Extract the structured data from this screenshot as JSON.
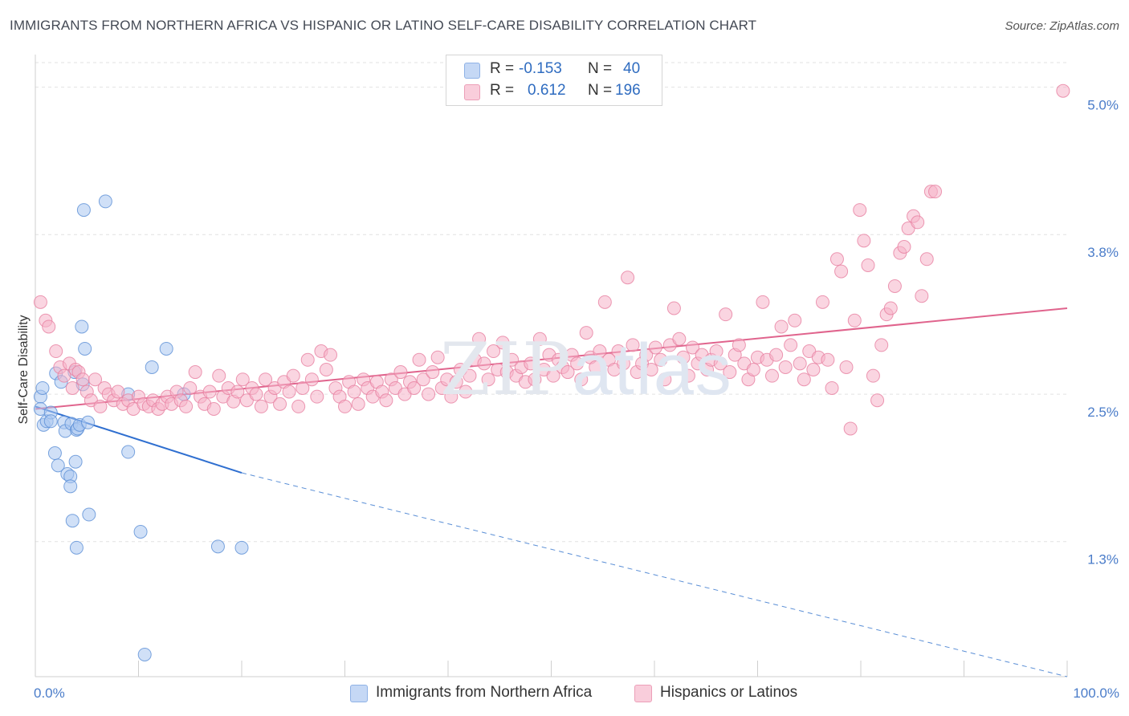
{
  "header": {
    "title": "IMMIGRANTS FROM NORTHERN AFRICA VS HISPANIC OR LATINO SELF-CARE DISABILITY CORRELATION CHART",
    "source": "Source: ZipAtlas.com"
  },
  "watermark": {
    "zip": "ZIP",
    "atlas": "atlas"
  },
  "legend": {
    "rows": [
      {
        "r_label": "R =",
        "r_value": "-0.153",
        "n_label": "N =",
        "n_value": "40",
        "color": "#a9c6f0"
      },
      {
        "r_label": "R =",
        "r_value": "0.612",
        "n_label": "N =",
        "n_value": "196",
        "color": "#f5b3c8"
      }
    ]
  },
  "bottom_legend": [
    {
      "label": "Immigrants from Northern Africa",
      "color": "#a9c6f0"
    },
    {
      "label": "Hispanics or Latinos",
      "color": "#f5b3c8"
    }
  ],
  "chart_data": {
    "type": "scatter",
    "title": "IMMIGRANTS FROM NORTHERN AFRICA VS HISPANIC OR LATINO SELF-CARE DISABILITY CORRELATION CHART",
    "ylabel": "Self-Care Disability",
    "xlabel": "",
    "xlim": [
      0,
      100
    ],
    "ylim": [
      0.2,
      5.2
    ],
    "x_ticks": [
      "0.0%",
      "100.0%"
    ],
    "y_ticks": [
      {
        "value": 1.3,
        "label": "1.3%"
      },
      {
        "value": 2.5,
        "label": "2.5%"
      },
      {
        "value": 3.8,
        "label": "3.8%"
      },
      {
        "value": 5.0,
        "label": "5.0%"
      }
    ],
    "grid": true,
    "legend_position": "top-center",
    "series": [
      {
        "name": "Immigrants from Northern Africa",
        "color": "#a9c6f0",
        "stroke": "#5b8fd6",
        "points": [
          [
            0.5,
            2.48
          ],
          [
            0.5,
            2.38
          ],
          [
            0.7,
            2.55
          ],
          [
            0.8,
            2.25
          ],
          [
            1.1,
            2.28
          ],
          [
            1.5,
            2.35
          ],
          [
            1.5,
            2.28
          ],
          [
            1.9,
            2.02
          ],
          [
            2.0,
            2.67
          ],
          [
            2.2,
            1.92
          ],
          [
            2.5,
            2.6
          ],
          [
            2.8,
            2.27
          ],
          [
            2.9,
            2.2
          ],
          [
            3.1,
            1.85
          ],
          [
            3.4,
            1.83
          ],
          [
            3.4,
            1.75
          ],
          [
            3.5,
            2.26
          ],
          [
            3.6,
            1.47
          ],
          [
            3.8,
            2.68
          ],
          [
            3.9,
            1.95
          ],
          [
            4.0,
            2.21
          ],
          [
            4.0,
            1.25
          ],
          [
            4.1,
            2.22
          ],
          [
            4.3,
            2.25
          ],
          [
            4.5,
            3.05
          ],
          [
            4.6,
            2.58
          ],
          [
            4.7,
            4.0
          ],
          [
            4.8,
            2.87
          ],
          [
            5.1,
            2.27
          ],
          [
            6.8,
            4.07
          ],
          [
            5.2,
            1.52
          ],
          [
            9.0,
            2.5
          ],
          [
            9.0,
            2.03
          ],
          [
            10.2,
            1.38
          ],
          [
            10.6,
            0.38
          ],
          [
            11.3,
            2.72
          ],
          [
            12.7,
            2.87
          ],
          [
            14.4,
            2.5
          ],
          [
            17.7,
            1.26
          ],
          [
            20.0,
            1.25
          ]
        ],
        "trend": {
          "x0": 0,
          "y0": 2.4,
          "x1": 20,
          "y1": 1.86,
          "dashed_to": 100,
          "dashed_y": 0.2
        }
      },
      {
        "name": "Hispanics or Latinos",
        "color": "#f5b3c8",
        "stroke": "#e77fa0",
        "points": [
          [
            0.5,
            3.25
          ],
          [
            1.0,
            3.1
          ],
          [
            1.3,
            3.05
          ],
          [
            2.0,
            2.85
          ],
          [
            2.4,
            2.72
          ],
          [
            2.8,
            2.65
          ],
          [
            3.3,
            2.75
          ],
          [
            3.6,
            2.55
          ],
          [
            3.9,
            2.7
          ],
          [
            4.2,
            2.68
          ],
          [
            4.6,
            2.62
          ],
          [
            5.0,
            2.52
          ],
          [
            5.4,
            2.45
          ],
          [
            5.8,
            2.62
          ],
          [
            6.3,
            2.4
          ],
          [
            6.7,
            2.55
          ],
          [
            7.1,
            2.5
          ],
          [
            7.6,
            2.45
          ],
          [
            8.0,
            2.52
          ],
          [
            8.5,
            2.42
          ],
          [
            9.0,
            2.45
          ],
          [
            9.5,
            2.38
          ],
          [
            10.0,
            2.48
          ],
          [
            10.5,
            2.42
          ],
          [
            11.0,
            2.4
          ],
          [
            11.4,
            2.45
          ],
          [
            11.9,
            2.38
          ],
          [
            12.3,
            2.42
          ],
          [
            12.8,
            2.48
          ],
          [
            13.2,
            2.42
          ],
          [
            13.7,
            2.52
          ],
          [
            14.1,
            2.45
          ],
          [
            14.6,
            2.4
          ],
          [
            15.0,
            2.55
          ],
          [
            15.5,
            2.68
          ],
          [
            16.0,
            2.48
          ],
          [
            16.4,
            2.42
          ],
          [
            16.9,
            2.52
          ],
          [
            17.3,
            2.38
          ],
          [
            17.8,
            2.65
          ],
          [
            18.2,
            2.48
          ],
          [
            18.7,
            2.55
          ],
          [
            19.2,
            2.44
          ],
          [
            19.6,
            2.52
          ],
          [
            20.1,
            2.62
          ],
          [
            20.5,
            2.45
          ],
          [
            21.0,
            2.55
          ],
          [
            21.4,
            2.5
          ],
          [
            21.9,
            2.4
          ],
          [
            22.3,
            2.62
          ],
          [
            22.8,
            2.48
          ],
          [
            23.2,
            2.55
          ],
          [
            23.7,
            2.42
          ],
          [
            24.1,
            2.6
          ],
          [
            24.6,
            2.52
          ],
          [
            25.0,
            2.65
          ],
          [
            25.5,
            2.4
          ],
          [
            25.9,
            2.55
          ],
          [
            26.4,
            2.78
          ],
          [
            26.8,
            2.62
          ],
          [
            27.3,
            2.48
          ],
          [
            27.7,
            2.85
          ],
          [
            28.2,
            2.7
          ],
          [
            28.6,
            2.82
          ],
          [
            29.1,
            2.55
          ],
          [
            29.5,
            2.48
          ],
          [
            30.0,
            2.4
          ],
          [
            30.4,
            2.6
          ],
          [
            30.9,
            2.52
          ],
          [
            31.3,
            2.42
          ],
          [
            31.8,
            2.62
          ],
          [
            32.2,
            2.55
          ],
          [
            32.7,
            2.48
          ],
          [
            33.1,
            2.6
          ],
          [
            33.6,
            2.52
          ],
          [
            34.0,
            2.45
          ],
          [
            34.5,
            2.62
          ],
          [
            34.9,
            2.55
          ],
          [
            35.4,
            2.68
          ],
          [
            35.8,
            2.5
          ],
          [
            36.3,
            2.6
          ],
          [
            36.7,
            2.55
          ],
          [
            37.2,
            2.78
          ],
          [
            37.6,
            2.62
          ],
          [
            38.1,
            2.5
          ],
          [
            38.5,
            2.68
          ],
          [
            39.0,
            2.8
          ],
          [
            39.4,
            2.55
          ],
          [
            39.9,
            2.62
          ],
          [
            40.3,
            2.48
          ],
          [
            40.8,
            2.6
          ],
          [
            41.2,
            2.7
          ],
          [
            41.7,
            2.52
          ],
          [
            42.1,
            2.65
          ],
          [
            42.6,
            2.78
          ],
          [
            43.0,
            2.95
          ],
          [
            43.5,
            2.75
          ],
          [
            43.9,
            2.62
          ],
          [
            44.4,
            2.85
          ],
          [
            44.8,
            2.7
          ],
          [
            45.3,
            2.92
          ],
          [
            45.7,
            2.68
          ],
          [
            46.2,
            2.78
          ],
          [
            46.6,
            2.65
          ],
          [
            47.1,
            2.72
          ],
          [
            47.5,
            2.6
          ],
          [
            48.0,
            2.75
          ],
          [
            48.4,
            2.62
          ],
          [
            48.9,
            2.95
          ],
          [
            49.3,
            2.7
          ],
          [
            49.8,
            2.82
          ],
          [
            50.2,
            2.65
          ],
          [
            50.7,
            2.78
          ],
          [
            51.1,
            2.72
          ],
          [
            51.6,
            2.68
          ],
          [
            52.0,
            2.82
          ],
          [
            52.5,
            2.75
          ],
          [
            52.9,
            2.62
          ],
          [
            53.4,
            3.0
          ],
          [
            53.8,
            2.8
          ],
          [
            54.3,
            2.72
          ],
          [
            54.7,
            2.85
          ],
          [
            55.2,
            3.25
          ],
          [
            55.6,
            2.78
          ],
          [
            56.1,
            2.7
          ],
          [
            56.5,
            2.85
          ],
          [
            57.0,
            2.75
          ],
          [
            57.4,
            3.45
          ],
          [
            57.9,
            2.9
          ],
          [
            58.3,
            2.68
          ],
          [
            58.8,
            2.75
          ],
          [
            59.2,
            2.82
          ],
          [
            59.7,
            2.7
          ],
          [
            60.1,
            2.88
          ],
          [
            60.6,
            2.78
          ],
          [
            61.0,
            2.62
          ],
          [
            61.5,
            2.9
          ],
          [
            61.9,
            3.2
          ],
          [
            62.4,
            2.95
          ],
          [
            62.8,
            2.8
          ],
          [
            63.3,
            2.65
          ],
          [
            63.7,
            2.88
          ],
          [
            64.2,
            2.75
          ],
          [
            64.6,
            2.82
          ],
          [
            65.1,
            2.7
          ],
          [
            65.5,
            2.78
          ],
          [
            66.0,
            2.85
          ],
          [
            66.4,
            2.75
          ],
          [
            66.9,
            3.15
          ],
          [
            67.3,
            2.68
          ],
          [
            67.8,
            2.82
          ],
          [
            68.2,
            2.9
          ],
          [
            68.7,
            2.75
          ],
          [
            69.1,
            2.62
          ],
          [
            69.6,
            2.7
          ],
          [
            70.0,
            2.8
          ],
          [
            70.5,
            3.25
          ],
          [
            70.9,
            2.78
          ],
          [
            71.4,
            2.65
          ],
          [
            71.8,
            2.82
          ],
          [
            72.3,
            3.05
          ],
          [
            72.7,
            2.72
          ],
          [
            73.2,
            2.9
          ],
          [
            73.6,
            3.1
          ],
          [
            74.1,
            2.75
          ],
          [
            74.5,
            2.62
          ],
          [
            75.0,
            2.85
          ],
          [
            75.4,
            2.7
          ],
          [
            75.9,
            2.8
          ],
          [
            76.3,
            3.25
          ],
          [
            76.8,
            2.78
          ],
          [
            77.2,
            2.55
          ],
          [
            77.7,
            3.6
          ],
          [
            78.1,
            3.5
          ],
          [
            78.6,
            2.72
          ],
          [
            79.0,
            2.22
          ],
          [
            79.4,
            3.1
          ],
          [
            79.9,
            4.0
          ],
          [
            80.3,
            3.75
          ],
          [
            80.7,
            3.55
          ],
          [
            81.2,
            2.65
          ],
          [
            81.6,
            2.45
          ],
          [
            82.0,
            2.9
          ],
          [
            82.5,
            3.15
          ],
          [
            82.9,
            3.2
          ],
          [
            83.3,
            3.38
          ],
          [
            83.8,
            3.65
          ],
          [
            84.2,
            3.7
          ],
          [
            84.6,
            3.85
          ],
          [
            85.1,
            3.95
          ],
          [
            85.5,
            3.9
          ],
          [
            85.9,
            3.3
          ],
          [
            86.4,
            3.6
          ],
          [
            86.8,
            4.15
          ],
          [
            87.2,
            4.15
          ],
          [
            99.6,
            4.97
          ]
        ],
        "trend": {
          "x0": 0,
          "y0": 2.38,
          "x1": 100,
          "y1": 3.2
        }
      }
    ]
  }
}
